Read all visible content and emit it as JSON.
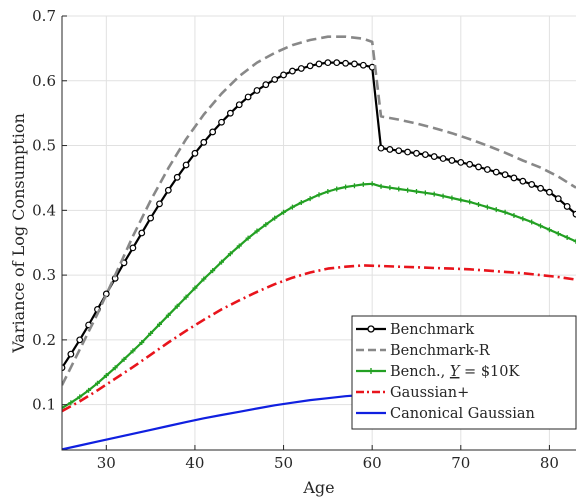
{
  "chart_data": {
    "type": "line",
    "title": "",
    "xlabel": "Age",
    "ylabel": "Variance of Log Consumption",
    "xlim": [
      25,
      83
    ],
    "ylim": [
      0.03,
      0.7
    ],
    "xticks": [
      30,
      40,
      50,
      60,
      70,
      80
    ],
    "yticks": [
      0.1,
      0.2,
      0.3,
      0.4,
      0.5,
      0.6,
      0.7
    ],
    "grid": true,
    "legend": {
      "position": "bottom-right",
      "entries": [
        {
          "label": "Benchmark",
          "color": "#000000",
          "style": "solid",
          "marker": "circle"
        },
        {
          "label": "Benchmark-R",
          "color": "#888888",
          "style": "dashed",
          "marker": "none"
        },
        {
          "label_main": "Bench., ",
          "label_sym": "Y",
          "label_tail": " = $10K",
          "color": "#23a023",
          "style": "solid",
          "marker": "plus"
        },
        {
          "label": "Gaussian+",
          "color": "#e8141c",
          "style": "dashdot",
          "marker": "none"
        },
        {
          "label": "Canonical Gaussian",
          "color": "#1020e0",
          "style": "solid",
          "marker": "none"
        }
      ]
    },
    "series": [
      {
        "name": "Benchmark",
        "color": "#000000",
        "style": "solid",
        "marker": "circle",
        "x": [
          25,
          26,
          27,
          28,
          29,
          30,
          31,
          32,
          33,
          34,
          35,
          36,
          37,
          38,
          39,
          40,
          41,
          42,
          43,
          44,
          45,
          46,
          47,
          48,
          49,
          50,
          51,
          52,
          53,
          54,
          55,
          56,
          57,
          58,
          59,
          60,
          61,
          62,
          63,
          64,
          65,
          66,
          67,
          68,
          69,
          70,
          71,
          72,
          73,
          74,
          75,
          76,
          77,
          78,
          79,
          80,
          81,
          82,
          83
        ],
        "y": [
          0.157,
          0.178,
          0.2,
          0.223,
          0.247,
          0.271,
          0.295,
          0.319,
          0.342,
          0.365,
          0.388,
          0.41,
          0.431,
          0.451,
          0.47,
          0.488,
          0.505,
          0.521,
          0.536,
          0.55,
          0.563,
          0.575,
          0.585,
          0.594,
          0.602,
          0.609,
          0.615,
          0.619,
          0.623,
          0.626,
          0.628,
          0.628,
          0.627,
          0.626,
          0.624,
          0.621,
          0.496,
          0.494,
          0.492,
          0.49,
          0.488,
          0.486,
          0.483,
          0.48,
          0.477,
          0.474,
          0.471,
          0.467,
          0.463,
          0.459,
          0.455,
          0.45,
          0.445,
          0.44,
          0.434,
          0.428,
          0.418,
          0.406,
          0.394
        ]
      },
      {
        "name": "Benchmark-R",
        "color": "#888888",
        "style": "dashed",
        "marker": "none",
        "x": [
          25,
          27,
          29,
          31,
          33,
          35,
          37,
          39,
          41,
          43,
          45,
          47,
          49,
          51,
          53,
          55,
          57,
          59,
          60,
          61,
          63,
          65,
          67,
          69,
          71,
          73,
          75,
          77,
          79,
          81,
          83
        ],
        "y": [
          0.13,
          0.185,
          0.24,
          0.3,
          0.36,
          0.415,
          0.465,
          0.51,
          0.548,
          0.58,
          0.607,
          0.628,
          0.643,
          0.655,
          0.663,
          0.668,
          0.668,
          0.665,
          0.66,
          0.545,
          0.54,
          0.534,
          0.527,
          0.519,
          0.51,
          0.5,
          0.489,
          0.477,
          0.466,
          0.452,
          0.435
        ]
      },
      {
        "name": "Bench., Y = $10K",
        "color": "#23a023",
        "style": "solid",
        "marker": "plus",
        "x": [
          25,
          26,
          27,
          28,
          29,
          30,
          31,
          32,
          33,
          34,
          35,
          36,
          37,
          38,
          39,
          40,
          41,
          42,
          43,
          44,
          45,
          46,
          47,
          48,
          49,
          50,
          51,
          52,
          53,
          54,
          55,
          56,
          57,
          58,
          59,
          60,
          61,
          62,
          63,
          64,
          65,
          66,
          67,
          68,
          69,
          70,
          71,
          72,
          73,
          74,
          75,
          76,
          77,
          78,
          79,
          80,
          81,
          82,
          83
        ],
        "y": [
          0.095,
          0.103,
          0.112,
          0.122,
          0.133,
          0.145,
          0.157,
          0.17,
          0.183,
          0.196,
          0.21,
          0.224,
          0.238,
          0.252,
          0.266,
          0.28,
          0.294,
          0.307,
          0.32,
          0.333,
          0.345,
          0.357,
          0.368,
          0.378,
          0.388,
          0.397,
          0.405,
          0.412,
          0.418,
          0.424,
          0.429,
          0.433,
          0.436,
          0.438,
          0.44,
          0.441,
          0.437,
          0.435,
          0.433,
          0.431,
          0.429,
          0.427,
          0.425,
          0.422,
          0.419,
          0.416,
          0.413,
          0.409,
          0.405,
          0.401,
          0.397,
          0.392,
          0.387,
          0.382,
          0.376,
          0.37,
          0.364,
          0.358,
          0.352
        ]
      },
      {
        "name": "Gaussian+",
        "color": "#e8141c",
        "style": "dashdot",
        "marker": "none",
        "x": [
          25,
          27,
          29,
          31,
          33,
          35,
          37,
          39,
          41,
          43,
          45,
          47,
          49,
          51,
          53,
          55,
          57,
          59,
          61,
          63,
          65,
          67,
          69,
          71,
          73,
          75,
          77,
          79,
          81,
          83
        ],
        "y": [
          0.09,
          0.105,
          0.122,
          0.14,
          0.158,
          0.177,
          0.196,
          0.214,
          0.231,
          0.247,
          0.261,
          0.274,
          0.286,
          0.296,
          0.304,
          0.31,
          0.313,
          0.315,
          0.314,
          0.313,
          0.312,
          0.311,
          0.31,
          0.309,
          0.307,
          0.305,
          0.303,
          0.3,
          0.297,
          0.293
        ]
      },
      {
        "name": "Canonical Gaussian",
        "color": "#1020e0",
        "style": "solid",
        "marker": "none",
        "x": [
          25,
          27,
          29,
          31,
          33,
          35,
          37,
          39,
          41,
          43,
          45,
          47,
          49,
          51,
          53,
          55,
          57,
          59,
          61,
          63,
          65,
          67,
          69,
          71,
          73,
          75,
          77,
          79,
          81,
          83
        ],
        "y": [
          0.031,
          0.037,
          0.043,
          0.049,
          0.055,
          0.061,
          0.067,
          0.073,
          0.079,
          0.084,
          0.089,
          0.094,
          0.099,
          0.103,
          0.107,
          0.11,
          0.113,
          0.115,
          0.116,
          0.116,
          0.117,
          0.117,
          0.117,
          0.117,
          0.117,
          0.117,
          0.117,
          0.117,
          0.117,
          0.117
        ]
      }
    ]
  }
}
